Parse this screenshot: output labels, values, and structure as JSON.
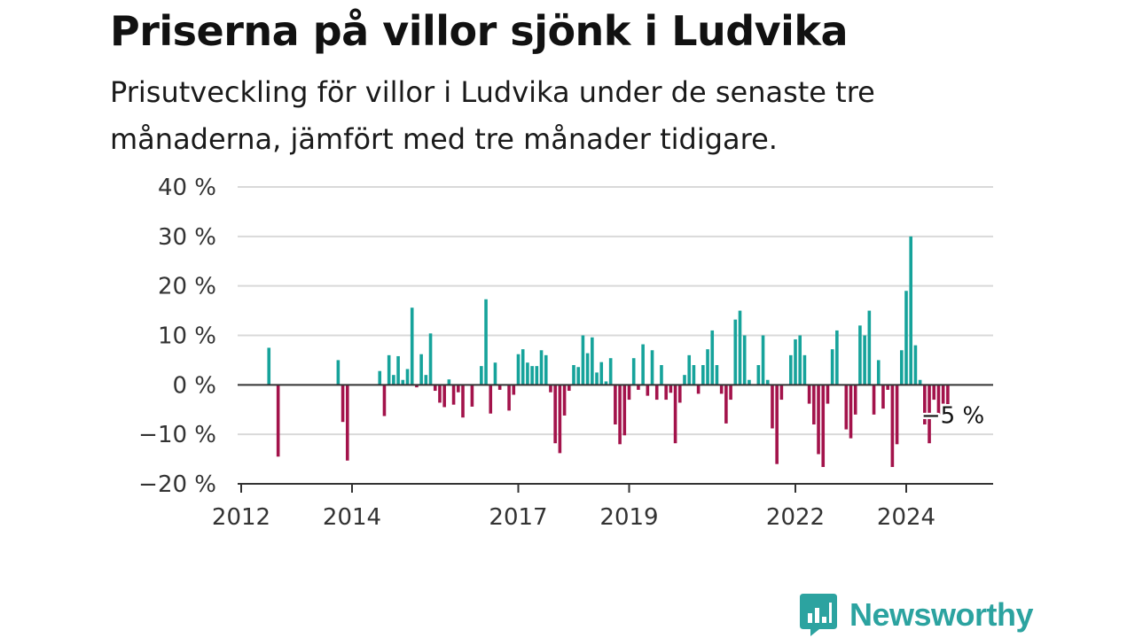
{
  "chart_data": {
    "type": "bar",
    "title": "Priserna på villor sjönk i Ludvika",
    "subtitle": "Prisutveckling för villor i Ludvika under de senaste tre månaderna, jämfört med tre månader tidigare.",
    "xlabel": "",
    "ylabel": "",
    "y_unit": "%",
    "ylim": [
      -20,
      40
    ],
    "yticks": [
      -20,
      -10,
      0,
      10,
      20,
      30,
      40
    ],
    "ytick_labels": [
      "−20 %",
      "−10 %",
      "0 %",
      "10 %",
      "20 %",
      "30 %",
      "40 %"
    ],
    "xticks": [
      {
        "date": "2012-01",
        "label": "2012"
      },
      {
        "date": "2014-01",
        "label": "2014"
      },
      {
        "date": "2017-01",
        "label": "2017"
      },
      {
        "date": "2019-01",
        "label": "2019"
      },
      {
        "date": "2022-01",
        "label": "2022"
      },
      {
        "date": "2024-01",
        "label": "2024"
      }
    ],
    "grid": true,
    "colors": {
      "positive": "#16a39b",
      "negative": "#a3134b",
      "grid": "#d9d9d9",
      "axis": "#333333"
    },
    "series": [
      {
        "values": [
          {
            "date": "2012-07",
            "value": 7.5
          },
          {
            "date": "2012-09",
            "value": -14.5
          },
          {
            "date": "2013-10",
            "value": 5
          },
          {
            "date": "2013-11",
            "value": -7.5
          },
          {
            "date": "2013-12",
            "value": -15.3
          },
          {
            "date": "2014-07",
            "value": 2.8
          },
          {
            "date": "2014-08",
            "value": -6.3
          },
          {
            "date": "2014-09",
            "value": 6
          },
          {
            "date": "2014-10",
            "value": 2
          },
          {
            "date": "2014-11",
            "value": 5.8
          },
          {
            "date": "2014-12",
            "value": 1
          },
          {
            "date": "2015-01",
            "value": 3.2
          },
          {
            "date": "2015-02",
            "value": 15.6
          },
          {
            "date": "2015-03",
            "value": -0.5
          },
          {
            "date": "2015-04",
            "value": 6.2
          },
          {
            "date": "2015-05",
            "value": 2
          },
          {
            "date": "2015-06",
            "value": 10.4
          },
          {
            "date": "2015-07",
            "value": -1.2
          },
          {
            "date": "2015-08",
            "value": -3.6
          },
          {
            "date": "2015-09",
            "value": -4.5
          },
          {
            "date": "2015-10",
            "value": 1.1
          },
          {
            "date": "2015-11",
            "value": -4
          },
          {
            "date": "2015-12",
            "value": -1.5
          },
          {
            "date": "2016-01",
            "value": -6.6
          },
          {
            "date": "2016-03",
            "value": -4.4
          },
          {
            "date": "2016-05",
            "value": 3.8
          },
          {
            "date": "2016-06",
            "value": 17.3
          },
          {
            "date": "2016-07",
            "value": -5.8
          },
          {
            "date": "2016-08",
            "value": 4.5
          },
          {
            "date": "2016-09",
            "value": -1
          },
          {
            "date": "2016-11",
            "value": -5.2
          },
          {
            "date": "2016-12",
            "value": -2
          },
          {
            "date": "2017-01",
            "value": 6.2
          },
          {
            "date": "2017-02",
            "value": 7.2
          },
          {
            "date": "2017-03",
            "value": 4.5
          },
          {
            "date": "2017-04",
            "value": 3.8
          },
          {
            "date": "2017-05",
            "value": 3.8
          },
          {
            "date": "2017-06",
            "value": 7
          },
          {
            "date": "2017-07",
            "value": 6
          },
          {
            "date": "2017-08",
            "value": -1.5
          },
          {
            "date": "2017-09",
            "value": -11.8
          },
          {
            "date": "2017-10",
            "value": -13.8
          },
          {
            "date": "2017-11",
            "value": -6.2
          },
          {
            "date": "2017-12",
            "value": -1.2
          },
          {
            "date": "2018-01",
            "value": 4
          },
          {
            "date": "2018-02",
            "value": 3.6
          },
          {
            "date": "2018-03",
            "value": 10
          },
          {
            "date": "2018-04",
            "value": 6.4
          },
          {
            "date": "2018-05",
            "value": 9.6
          },
          {
            "date": "2018-06",
            "value": 2.5
          },
          {
            "date": "2018-07",
            "value": 4.6
          },
          {
            "date": "2018-08",
            "value": 0.7
          },
          {
            "date": "2018-09",
            "value": 5.4
          },
          {
            "date": "2018-10",
            "value": -8
          },
          {
            "date": "2018-11",
            "value": -12
          },
          {
            "date": "2018-12",
            "value": -10.2
          },
          {
            "date": "2019-01",
            "value": -3
          },
          {
            "date": "2019-02",
            "value": 5.4
          },
          {
            "date": "2019-03",
            "value": -1
          },
          {
            "date": "2019-04",
            "value": 8.2
          },
          {
            "date": "2019-05",
            "value": -2.2
          },
          {
            "date": "2019-06",
            "value": 7
          },
          {
            "date": "2019-07",
            "value": -3
          },
          {
            "date": "2019-08",
            "value": 4
          },
          {
            "date": "2019-09",
            "value": -3
          },
          {
            "date": "2019-10",
            "value": -1.6
          },
          {
            "date": "2019-11",
            "value": -11.8
          },
          {
            "date": "2019-12",
            "value": -3.6
          },
          {
            "date": "2020-01",
            "value": 2
          },
          {
            "date": "2020-02",
            "value": 6
          },
          {
            "date": "2020-03",
            "value": 4
          },
          {
            "date": "2020-04",
            "value": -1.8
          },
          {
            "date": "2020-05",
            "value": 4
          },
          {
            "date": "2020-06",
            "value": 7.2
          },
          {
            "date": "2020-07",
            "value": 11
          },
          {
            "date": "2020-08",
            "value": 4
          },
          {
            "date": "2020-09",
            "value": -1.8
          },
          {
            "date": "2020-10",
            "value": -7.8
          },
          {
            "date": "2020-11",
            "value": -3
          },
          {
            "date": "2020-12",
            "value": 13.2
          },
          {
            "date": "2021-01",
            "value": 15
          },
          {
            "date": "2021-02",
            "value": 10
          },
          {
            "date": "2021-03",
            "value": 1
          },
          {
            "date": "2021-05",
            "value": 4
          },
          {
            "date": "2021-06",
            "value": 10
          },
          {
            "date": "2021-07",
            "value": 1
          },
          {
            "date": "2021-08",
            "value": -8.8
          },
          {
            "date": "2021-09",
            "value": -16
          },
          {
            "date": "2021-10",
            "value": -3
          },
          {
            "date": "2021-12",
            "value": 6
          },
          {
            "date": "2022-01",
            "value": 9.2
          },
          {
            "date": "2022-02",
            "value": 10
          },
          {
            "date": "2022-03",
            "value": 6
          },
          {
            "date": "2022-04",
            "value": -3.8
          },
          {
            "date": "2022-05",
            "value": -8
          },
          {
            "date": "2022-06",
            "value": -14
          },
          {
            "date": "2022-07",
            "value": -16.6
          },
          {
            "date": "2022-08",
            "value": -3.8
          },
          {
            "date": "2022-09",
            "value": 7.2
          },
          {
            "date": "2022-10",
            "value": 11
          },
          {
            "date": "2022-12",
            "value": -9
          },
          {
            "date": "2023-01",
            "value": -10.8
          },
          {
            "date": "2023-02",
            "value": -6
          },
          {
            "date": "2023-03",
            "value": 12
          },
          {
            "date": "2023-04",
            "value": 10
          },
          {
            "date": "2023-05",
            "value": 15
          },
          {
            "date": "2023-06",
            "value": -6
          },
          {
            "date": "2023-07",
            "value": 5
          },
          {
            "date": "2023-08",
            "value": -4.8
          },
          {
            "date": "2023-09",
            "value": -1
          },
          {
            "date": "2023-10",
            "value": -16.6
          },
          {
            "date": "2023-11",
            "value": -12
          },
          {
            "date": "2023-12",
            "value": 7
          },
          {
            "date": "2024-01",
            "value": 19
          },
          {
            "date": "2024-02",
            "value": 30
          },
          {
            "date": "2024-03",
            "value": 8
          },
          {
            "date": "2024-04",
            "value": 1
          },
          {
            "date": "2024-05",
            "value": -8
          },
          {
            "date": "2024-06",
            "value": -11.8
          },
          {
            "date": "2024-07",
            "value": -3
          },
          {
            "date": "2024-08",
            "value": -6
          },
          {
            "date": "2024-09",
            "value": -3.8
          },
          {
            "date": "2024-10",
            "value": -5
          }
        ]
      }
    ],
    "annotations": [
      {
        "date": "2024-10",
        "value": -5,
        "label": "−5 %"
      }
    ]
  },
  "brand": {
    "name": "Newsworthy",
    "color": "#2ca3a0",
    "icon": "bar-chart-speech-bubble-icon"
  }
}
